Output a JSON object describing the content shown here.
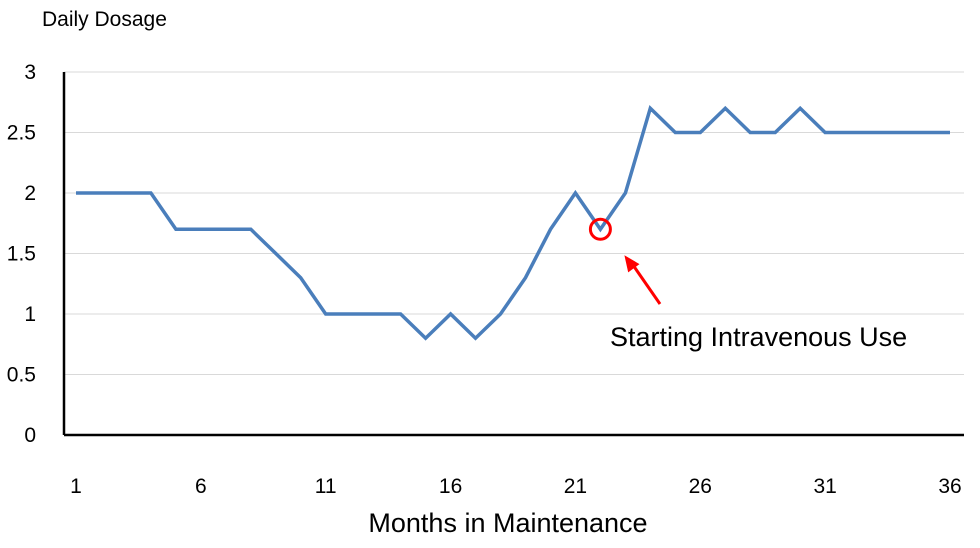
{
  "chart_data": {
    "type": "line",
    "ylabel": "Daily Dosage",
    "xlabel": "Months in Maintenance",
    "ylim": [
      0,
      3
    ],
    "xlim": [
      1,
      36
    ],
    "yticks": [
      "0",
      "0.5",
      "1",
      "1.5",
      "2",
      "2.5",
      "3"
    ],
    "xticks": [
      "1",
      "6",
      "11",
      "16",
      "21",
      "26",
      "31",
      "36"
    ],
    "grid": true,
    "line_color": "#4a7ebb",
    "x": [
      1,
      2,
      3,
      4,
      5,
      6,
      7,
      8,
      9,
      10,
      11,
      12,
      13,
      14,
      15,
      16,
      17,
      18,
      19,
      20,
      21,
      22,
      23,
      24,
      25,
      26,
      27,
      28,
      29,
      30,
      31,
      32,
      33,
      34,
      35,
      36
    ],
    "series": [
      {
        "values": [
          2,
          2,
          2,
          2,
          1.7,
          1.7,
          1.7,
          1.7,
          1.5,
          1.3,
          1,
          1,
          1,
          1,
          0.8,
          1,
          0.8,
          1,
          1.3,
          1.7,
          2,
          1.7,
          2,
          2.7,
          2.5,
          2.5,
          2.7,
          2.5,
          2.5,
          2.7,
          2.5,
          2.5,
          2.5,
          2.5,
          2.5,
          2.5
        ]
      }
    ],
    "annotation": {
      "text": "Starting Intravenous Use",
      "x": 22,
      "y": 1.7,
      "color": "#ff0000"
    }
  }
}
